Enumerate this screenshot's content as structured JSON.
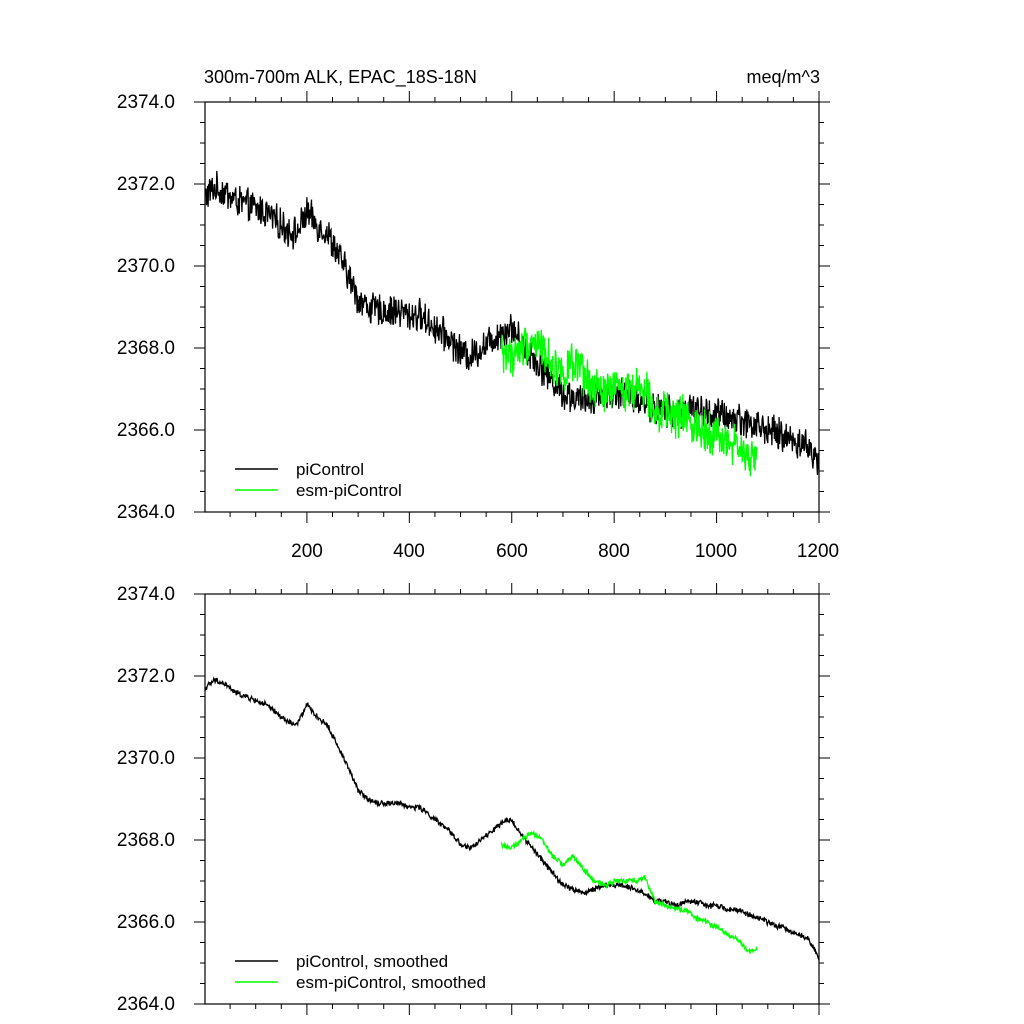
{
  "chart_data": [
    {
      "type": "line",
      "title": "300m-700m ALK, EPAC_18S-18N",
      "units_label": "meq/m^3",
      "xlim": [
        1,
        1200
      ],
      "ylim": [
        2364.0,
        2374.0
      ],
      "x_ticks": [
        200,
        400,
        600,
        800,
        1000,
        1200
      ],
      "x_tick_labels": [
        "200",
        "400",
        "600",
        "800",
        "1000",
        "1200"
      ],
      "y_ticks": [
        2364.0,
        2366.0,
        2368.0,
        2370.0,
        2372.0,
        2374.0
      ],
      "y_tick_labels": [
        "2364.0",
        "2366.0",
        "2368.0",
        "2370.0",
        "2372.0",
        "2374.0"
      ],
      "legend_position": "bottom-left",
      "grid": false,
      "series": [
        {
          "name": "piControl",
          "color": "#000000",
          "noise": 0.35,
          "x": [
            1,
            20,
            40,
            60,
            80,
            100,
            120,
            140,
            160,
            180,
            200,
            220,
            240,
            260,
            280,
            300,
            320,
            340,
            360,
            380,
            400,
            420,
            440,
            460,
            480,
            500,
            520,
            540,
            560,
            580,
            600,
            620,
            640,
            660,
            680,
            700,
            720,
            740,
            760,
            780,
            800,
            820,
            840,
            860,
            880,
            900,
            920,
            940,
            960,
            980,
            1000,
            1020,
            1040,
            1060,
            1080,
            1100,
            1120,
            1140,
            1160,
            1180,
            1200
          ],
          "y": [
            2371.7,
            2371.9,
            2371.8,
            2371.6,
            2371.5,
            2371.4,
            2371.3,
            2371.1,
            2370.9,
            2370.8,
            2371.3,
            2371.0,
            2370.8,
            2370.3,
            2369.8,
            2369.2,
            2369.0,
            2368.9,
            2368.9,
            2368.9,
            2368.8,
            2368.8,
            2368.6,
            2368.4,
            2368.2,
            2367.9,
            2367.8,
            2368.0,
            2368.2,
            2368.4,
            2368.5,
            2368.1,
            2367.8,
            2367.5,
            2367.2,
            2366.9,
            2366.8,
            2366.7,
            2366.8,
            2366.9,
            2366.9,
            2366.9,
            2366.8,
            2366.7,
            2366.5,
            2366.5,
            2366.4,
            2366.5,
            2366.5,
            2366.4,
            2366.4,
            2366.3,
            2366.3,
            2366.2,
            2366.1,
            2366.0,
            2365.9,
            2365.8,
            2365.7,
            2365.6,
            2365.1
          ]
        },
        {
          "name": "esm-piControl",
          "color": "#00ff00",
          "noise": 0.45,
          "x": [
            580,
            600,
            620,
            640,
            660,
            680,
            700,
            720,
            740,
            760,
            780,
            800,
            820,
            840,
            860,
            880,
            900,
            920,
            940,
            960,
            980,
            1000,
            1020,
            1040,
            1060,
            1080
          ],
          "y": [
            2367.9,
            2367.8,
            2368.0,
            2368.2,
            2368.0,
            2367.6,
            2367.4,
            2367.6,
            2367.3,
            2367.0,
            2366.9,
            2367.0,
            2367.0,
            2367.0,
            2367.1,
            2366.5,
            2366.4,
            2366.3,
            2366.3,
            2366.1,
            2366.0,
            2365.9,
            2365.7,
            2365.6,
            2365.3,
            2365.3
          ]
        }
      ]
    },
    {
      "type": "line",
      "title": "",
      "xlim": [
        1,
        1200
      ],
      "ylim": [
        2364.0,
        2374.0
      ],
      "x_ticks": [
        200,
        400,
        600,
        800,
        1000,
        1200
      ],
      "y_ticks": [
        2364.0,
        2366.0,
        2368.0,
        2370.0,
        2372.0,
        2374.0
      ],
      "y_tick_labels": [
        "2364.0",
        "2366.0",
        "2368.0",
        "2370.0",
        "2372.0",
        "2374.0"
      ],
      "legend_position": "bottom-left",
      "grid": false,
      "series": [
        {
          "name": "piControl, smoothed",
          "color": "#000000",
          "noise": 0.06,
          "x": [
            1,
            20,
            40,
            60,
            80,
            100,
            120,
            140,
            160,
            180,
            200,
            220,
            240,
            260,
            280,
            300,
            320,
            340,
            360,
            380,
            400,
            420,
            440,
            460,
            480,
            500,
            520,
            540,
            560,
            580,
            600,
            620,
            640,
            660,
            680,
            700,
            720,
            740,
            760,
            780,
            800,
            820,
            840,
            860,
            880,
            900,
            920,
            940,
            960,
            980,
            1000,
            1020,
            1040,
            1060,
            1080,
            1100,
            1120,
            1140,
            1160,
            1180,
            1200
          ],
          "y": [
            2371.7,
            2371.9,
            2371.8,
            2371.6,
            2371.5,
            2371.4,
            2371.3,
            2371.1,
            2370.9,
            2370.8,
            2371.3,
            2371.0,
            2370.8,
            2370.3,
            2369.8,
            2369.2,
            2369.0,
            2368.9,
            2368.9,
            2368.9,
            2368.8,
            2368.8,
            2368.6,
            2368.4,
            2368.2,
            2367.9,
            2367.8,
            2368.0,
            2368.2,
            2368.4,
            2368.5,
            2368.1,
            2367.8,
            2367.5,
            2367.2,
            2366.9,
            2366.8,
            2366.7,
            2366.8,
            2366.9,
            2366.9,
            2366.9,
            2366.8,
            2366.7,
            2366.5,
            2366.5,
            2366.4,
            2366.5,
            2366.5,
            2366.4,
            2366.4,
            2366.3,
            2366.3,
            2366.2,
            2366.1,
            2366.0,
            2365.9,
            2365.8,
            2365.7,
            2365.6,
            2365.1
          ]
        },
        {
          "name": "esm-piControl, smoothed",
          "color": "#00ff00",
          "noise": 0.06,
          "x": [
            580,
            600,
            620,
            640,
            660,
            680,
            700,
            720,
            740,
            760,
            780,
            800,
            820,
            840,
            860,
            880,
            900,
            920,
            940,
            960,
            980,
            1000,
            1020,
            1040,
            1060,
            1080
          ],
          "y": [
            2367.9,
            2367.8,
            2368.0,
            2368.2,
            2368.0,
            2367.6,
            2367.4,
            2367.6,
            2367.3,
            2367.0,
            2366.9,
            2367.0,
            2367.0,
            2367.0,
            2367.1,
            2366.5,
            2366.4,
            2366.3,
            2366.3,
            2366.1,
            2366.0,
            2365.9,
            2365.7,
            2365.6,
            2365.3,
            2365.3
          ]
        }
      ]
    }
  ]
}
